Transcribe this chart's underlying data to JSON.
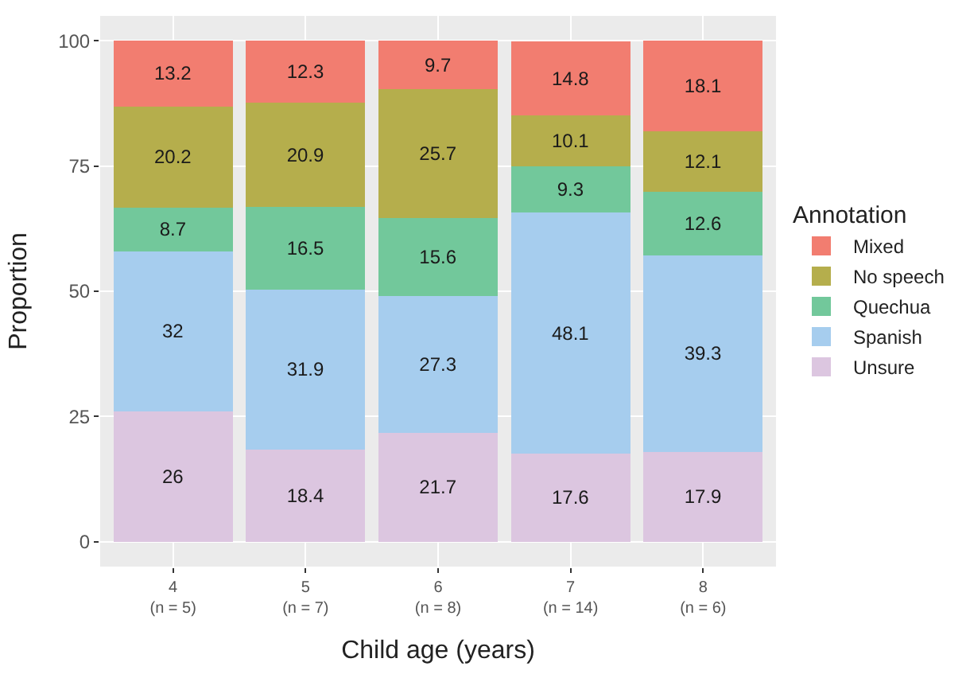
{
  "chart_data": {
    "type": "bar",
    "stacked": true,
    "xlabel": "Child age (years)",
    "ylabel": "Proportion",
    "legend_title": "Annotation",
    "categories": [
      "4\n(n = 5)",
      "5\n(n = 7)",
      "6\n(n = 8)",
      "7\n(n = 14)",
      "8\n(n = 6)"
    ],
    "series": [
      {
        "name": "Unsure",
        "color": "#dcc6e0",
        "values": [
          26,
          18.4,
          21.7,
          17.6,
          17.9
        ]
      },
      {
        "name": "Spanish",
        "color": "#a6cdee",
        "values": [
          32,
          31.9,
          27.3,
          48.1,
          39.3
        ]
      },
      {
        "name": "Quechua",
        "color": "#72c89b",
        "values": [
          8.7,
          16.5,
          15.6,
          9.3,
          12.6
        ]
      },
      {
        "name": "No speech",
        "color": "#b5ae4c",
        "values": [
          20.2,
          20.9,
          25.7,
          10.1,
          12.1
        ]
      },
      {
        "name": "Mixed",
        "color": "#f27d70",
        "values": [
          13.2,
          12.3,
          9.7,
          14.8,
          18.1
        ]
      }
    ],
    "ylim": [
      -5,
      105
    ],
    "yticks": [
      0,
      25,
      50,
      75,
      100
    ],
    "grid": true,
    "legend": "right",
    "data_labels": true
  }
}
